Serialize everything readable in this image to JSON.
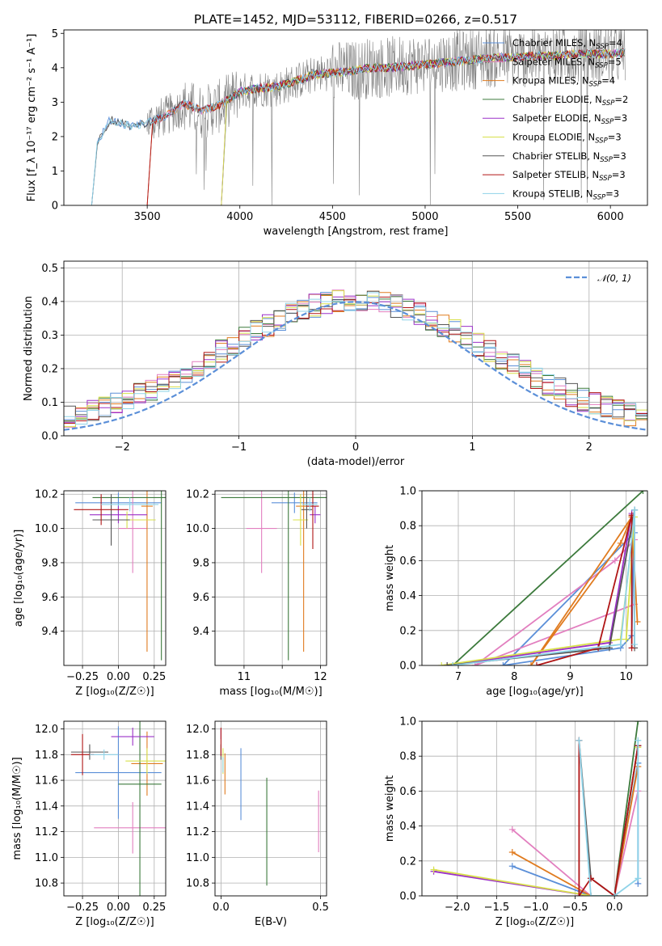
{
  "chart_data": [
    {
      "id": "spectrum",
      "type": "line",
      "title": "PLATE=1452, MJD=53112, FIBERID=0266, z=0.517",
      "xlabel": "wavelength [Angstrom, rest frame]",
      "ylabel": "Flux [f_λ 10⁻¹⁷ erg cm⁻² s⁻¹ A⁻¹]",
      "xlim": [
        3050,
        6200
      ],
      "ylim": [
        0,
        5.1
      ],
      "xticks": [
        3500,
        4000,
        4500,
        5000,
        5500,
        6000
      ],
      "yticks": [
        0,
        1,
        2,
        3,
        4,
        5
      ],
      "grid": false,
      "legend_position": "top-right",
      "legend": [
        {
          "main": "Chabrier MILES, N",
          "sub": "SSP",
          "tail": "=4",
          "color": "#5b8fd8"
        },
        {
          "main": "Salpeter MILES, N",
          "sub": "SSP",
          "tail": "=5",
          "color": "#e27fbf"
        },
        {
          "main": "Kroupa MILES, N",
          "sub": "SSP",
          "tail": "=4",
          "color": "#e07b1f"
        },
        {
          "main": "Chabrier ELODIE, N",
          "sub": "SSP",
          "tail": "=2",
          "color": "#3c7a3c"
        },
        {
          "main": "Salpeter ELODIE, N",
          "sub": "SSP",
          "tail": "=3",
          "color": "#9b30c8"
        },
        {
          "main": "Kroupa ELODIE, N",
          "sub": "SSP",
          "tail": "=3",
          "color": "#d8e04a"
        },
        {
          "main": "Chabrier STELIB, N",
          "sub": "SSP",
          "tail": "=3",
          "color": "#555555"
        },
        {
          "main": "Salpeter STELIB, N",
          "sub": "SSP",
          "tail": "=3",
          "color": "#b01515"
        },
        {
          "main": "Kroupa STELIB, N",
          "sub": "SSP",
          "tail": "=3",
          "color": "#8fd3e8"
        }
      ],
      "series": [
        {
          "kind": "data",
          "color": "#808080",
          "x": [
            3200,
            3230,
            3300,
            3400,
            3500,
            3600,
            3700,
            3800,
            3900,
            4000,
            4100,
            4200,
            4300,
            4400,
            4500,
            4600,
            4700,
            4800,
            4900,
            5000,
            5100,
            5200,
            5300,
            5400,
            5500,
            5600,
            5700,
            5800,
            5900,
            6000,
            6100
          ],
          "y": [
            0.0,
            1.8,
            2.4,
            2.3,
            2.4,
            2.6,
            2.9,
            2.7,
            2.9,
            3.3,
            3.4,
            3.4,
            3.6,
            3.8,
            3.9,
            3.9,
            4.0,
            4.0,
            4.1,
            4.1,
            4.2,
            4.2,
            4.3,
            4.3,
            4.3,
            4.3,
            4.4,
            4.4,
            4.4,
            4.4,
            4.4
          ]
        },
        {
          "kind": "model",
          "x": [
            3200,
            3230,
            3300,
            3400,
            3500,
            3600,
            3700,
            3800,
            3900,
            4000,
            4100,
            4200,
            4300,
            4400,
            4500,
            4600,
            4700,
            4800,
            4900,
            5000,
            5100,
            5200,
            5300,
            5400,
            5500,
            5600,
            5700,
            5800,
            5900,
            6000,
            6100
          ],
          "y": [
            0.0,
            1.8,
            2.5,
            2.3,
            2.4,
            2.6,
            2.95,
            2.75,
            2.95,
            3.3,
            3.4,
            3.45,
            3.6,
            3.8,
            3.85,
            3.9,
            4.0,
            4.0,
            4.05,
            4.1,
            4.15,
            4.2,
            4.25,
            4.3,
            4.3,
            4.35,
            4.35,
            4.4,
            4.4,
            4.4,
            4.45
          ]
        }
      ]
    },
    {
      "id": "residuals",
      "type": "line",
      "xlabel": "(data-model)/error",
      "ylabel": "Normed distribution",
      "xlim": [
        -2.5,
        2.5
      ],
      "ylim": [
        0,
        0.52
      ],
      "xticks": [
        -2,
        -1,
        0,
        1,
        2
      ],
      "yticks": [
        0.0,
        0.1,
        0.2,
        0.3,
        0.4,
        0.5
      ],
      "grid": true,
      "legend_position": "top-right",
      "legend": [
        {
          "label": "𝒩(0, 1)",
          "color": "#5b8fd8",
          "dashed": true
        }
      ],
      "gaussian": {
        "mean": 0,
        "sigma": 1
      }
    },
    {
      "id": "age-vs-Z",
      "type": "scatter",
      "xlabel": "Z [log₁₀(Z/Z☉)]",
      "ylabel": "age  [log₁₀(age/yr)]",
      "xlim": [
        -0.38,
        0.33
      ],
      "ylim": [
        9.2,
        10.22
      ],
      "xticks": [
        -0.25,
        0.0,
        0.25
      ],
      "xtick_labels": [
        "−0.25",
        "0.00",
        "0.25"
      ],
      "yticks": [
        9.4,
        9.6,
        9.8,
        10.0,
        10.2
      ],
      "grid": true,
      "points": [
        {
          "x": 0.0,
          "y": 10.15,
          "xerr": 0.3,
          "yerr": 0.06,
          "color": "#5b8fd8"
        },
        {
          "x": 0.1,
          "y": 10.0,
          "xerr": 0.1,
          "yerr": 0.26,
          "color": "#e27fbf"
        },
        {
          "x": 0.2,
          "y": 10.13,
          "xerr": 0.04,
          "yerr": 0.85,
          "color": "#e07b1f"
        },
        {
          "x": 0.3,
          "y": 10.18,
          "xerr": 0.48,
          "yerr": 0.95,
          "color": "#3c7a3c"
        },
        {
          "x": 0.0,
          "y": 10.08,
          "xerr": 0.2,
          "yerr": 0.05,
          "color": "#9b30c8"
        },
        {
          "x": 0.06,
          "y": 10.05,
          "xerr": 0.2,
          "yerr": 0.05,
          "color": "#d8e04a"
        },
        {
          "x": -0.05,
          "y": 10.05,
          "xerr": 0.13,
          "yerr": 0.15,
          "color": "#555555"
        },
        {
          "x": -0.12,
          "y": 10.11,
          "xerr": 0.19,
          "yerr": 0.09,
          "color": "#b01515"
        },
        {
          "x": 0.08,
          "y": 10.14,
          "xerr": 0.2,
          "yerr": 0.04,
          "color": "#8fd3e8"
        }
      ]
    },
    {
      "id": "age-vs-mass",
      "type": "scatter",
      "xlabel": "mass [log₁₀(M/M☉)]",
      "ylabel": "",
      "xlim": [
        10.62,
        12.08
      ],
      "ylim": [
        9.2,
        10.22
      ],
      "xticks": [
        11,
        11.5,
        12
      ],
      "xtick_labels": [
        "11",
        "",
        "12"
      ],
      "yticks": [
        9.4,
        9.6,
        9.8,
        10.0,
        10.2
      ],
      "grid": true,
      "points": [
        {
          "x": 11.66,
          "y": 10.15,
          "xerr": 0.3,
          "yerr": 0.06,
          "color": "#5b8fd8"
        },
        {
          "x": 11.23,
          "y": 10.0,
          "xerr": 0.2,
          "yerr": 0.26,
          "color": "#e27fbf"
        },
        {
          "x": 11.78,
          "y": 10.13,
          "xerr": 0.1,
          "yerr": 0.85,
          "color": "#e07b1f"
        },
        {
          "x": 11.58,
          "y": 10.18,
          "xerr": 0.88,
          "yerr": 0.95,
          "color": "#3c7a3c"
        },
        {
          "x": 11.93,
          "y": 10.08,
          "xerr": 0.07,
          "yerr": 0.05,
          "color": "#9b30c8"
        },
        {
          "x": 11.74,
          "y": 10.05,
          "xerr": 0.1,
          "yerr": 0.15,
          "color": "#d8e04a"
        },
        {
          "x": 11.82,
          "y": 10.11,
          "xerr": 0.07,
          "yerr": 0.11,
          "color": "#555555"
        },
        {
          "x": 11.9,
          "y": 10.13,
          "xerr": 0.08,
          "yerr": 0.25,
          "color": "#b01515"
        },
        {
          "x": 11.86,
          "y": 10.14,
          "xerr": 0.1,
          "yerr": 0.04,
          "color": "#8fd3e8"
        }
      ]
    },
    {
      "id": "weight-vs-age",
      "type": "line",
      "xlabel": "age  [log₁₀(age/yr)]",
      "ylabel": "mass weight",
      "xlim": [
        6.35,
        10.38
      ],
      "ylim": [
        0,
        1.0
      ],
      "xticks": [
        7,
        8,
        9,
        10
      ],
      "yticks": [
        0.0,
        0.2,
        0.4,
        0.6,
        0.8,
        1.0
      ],
      "grid": true,
      "series": [
        {
          "color": "#5b8fd8",
          "x": [
            10.15,
            7.8,
            9.9,
            10.1,
            10.15,
            10.1
          ],
          "y": [
            0.76,
            0.0,
            0.1,
            0.17,
            0.89,
            0.17
          ]
        },
        {
          "color": "#e27fbf",
          "x": [
            7.3,
            9.8,
            10.15,
            10.15,
            7.3
          ],
          "y": [
            0.0,
            0.6,
            0.72,
            0.35,
            0.0
          ]
        },
        {
          "color": "#e07b1f",
          "x": [
            8.3,
            9.9,
            10.1,
            10.2,
            10.1,
            8.3
          ],
          "y": [
            0.0,
            0.7,
            0.85,
            0.25,
            0.85,
            0.0
          ]
        },
        {
          "color": "#3c7a3c",
          "x": [
            6.9,
            10.3,
            6.9
          ],
          "y": [
            0.0,
            1.0,
            0.0
          ]
        },
        {
          "color": "#9b30c8",
          "x": [
            6.8,
            9.7,
            10.1
          ],
          "y": [
            0.0,
            0.13,
            0.87
          ]
        },
        {
          "color": "#d8e04a",
          "x": [
            6.7,
            9.9,
            10.15,
            10.0
          ],
          "y": [
            0.0,
            0.15,
            0.85,
            0.15
          ]
        },
        {
          "color": "#555555",
          "x": [
            6.8,
            9.7,
            10.15,
            10.15
          ],
          "y": [
            0.0,
            0.1,
            0.89,
            0.1
          ]
        },
        {
          "color": "#b01515",
          "x": [
            8.4,
            9.5,
            10.1,
            10.1
          ],
          "y": [
            0.0,
            0.1,
            0.86,
            0.1
          ]
        },
        {
          "color": "#8fd3e8",
          "x": [
            6.9,
            9.9,
            10.15,
            10.15
          ],
          "y": [
            0.0,
            0.12,
            0.89,
            0.12
          ]
        }
      ]
    },
    {
      "id": "mass-vs-Z",
      "type": "scatter",
      "xlabel": "Z [log₁₀(Z/Z☉)]",
      "ylabel": "mass [log₁₀(M/M☉)]",
      "xlim": [
        -0.38,
        0.33
      ],
      "ylim": [
        10.7,
        12.06
      ],
      "xticks": [
        -0.25,
        0.0,
        0.25
      ],
      "xtick_labels": [
        "−0.25",
        "0.00",
        "0.25"
      ],
      "yticks": [
        10.8,
        11.0,
        11.2,
        11.4,
        11.6,
        11.8,
        12.0
      ],
      "grid": true,
      "points": [
        {
          "x": 0.0,
          "y": 11.66,
          "xerr": 0.3,
          "yerr": 0.36,
          "color": "#5b8fd8"
        },
        {
          "x": 0.1,
          "y": 11.23,
          "xerr": 0.27,
          "yerr": 0.2,
          "color": "#e27fbf"
        },
        {
          "x": 0.2,
          "y": 11.73,
          "xerr": 0.11,
          "yerr": 0.25,
          "color": "#e07b1f"
        },
        {
          "x": 0.15,
          "y": 11.57,
          "xerr": 0.15,
          "yerr": 0.88,
          "color": "#3c7a3c"
        },
        {
          "x": 0.1,
          "y": 11.94,
          "xerr": 0.15,
          "yerr": 0.07,
          "color": "#9b30c8"
        },
        {
          "x": 0.2,
          "y": 11.75,
          "xerr": 0.15,
          "yerr": 0.1,
          "color": "#d8e04a"
        },
        {
          "x": -0.2,
          "y": 11.82,
          "xerr": 0.13,
          "yerr": 0.06,
          "color": "#555555"
        },
        {
          "x": -0.25,
          "y": 11.8,
          "xerr": 0.08,
          "yerr": 0.16,
          "color": "#b01515"
        },
        {
          "x": -0.1,
          "y": 11.8,
          "xerr": 0.1,
          "yerr": 0.04,
          "color": "#8fd3e8"
        }
      ]
    },
    {
      "id": "mass-vs-EBV",
      "type": "scatter",
      "xlabel": "E(B-V)",
      "ylabel": "",
      "xlim": [
        -0.03,
        0.53
      ],
      "ylim": [
        10.7,
        12.06
      ],
      "xticks": [
        0.0,
        0.5
      ],
      "xtick_labels": [
        "0.0",
        "0.5"
      ],
      "yticks": [
        10.8,
        11.0,
        11.2,
        11.4,
        11.6,
        11.8,
        12.0
      ],
      "grid": true,
      "points": [
        {
          "x": 0.1,
          "y": 11.57,
          "xerr": 0,
          "yerr": 0.28,
          "color": "#5b8fd8"
        },
        {
          "x": 0.49,
          "y": 11.28,
          "xerr": 0,
          "yerr": 0.24,
          "color": "#e27fbf"
        },
        {
          "x": 0.02,
          "y": 11.65,
          "xerr": 0,
          "yerr": 0.16,
          "color": "#e07b1f"
        },
        {
          "x": 0.23,
          "y": 11.2,
          "xerr": 0,
          "yerr": 0.42,
          "color": "#3c7a3c"
        },
        {
          "x": 0.0,
          "y": 11.96,
          "xerr": 0,
          "yerr": 0.04,
          "color": "#9b30c8"
        },
        {
          "x": 0.01,
          "y": 11.75,
          "xerr": 0,
          "yerr": 0.1,
          "color": "#d8e04a"
        },
        {
          "x": 0.0,
          "y": 11.82,
          "xerr": 0,
          "yerr": 0.06,
          "color": "#555555"
        },
        {
          "x": 0.0,
          "y": 11.9,
          "xerr": 0,
          "yerr": 0.11,
          "color": "#b01515"
        },
        {
          "x": 0.01,
          "y": 11.72,
          "xerr": 0,
          "yerr": 0.06,
          "color": "#8fd3e8"
        }
      ]
    },
    {
      "id": "weight-vs-Z",
      "type": "line",
      "xlabel": "Z [log₁₀(Z/Z☉)]",
      "ylabel": "mass weight",
      "xlim": [
        -2.45,
        0.42
      ],
      "ylim": [
        0,
        1.0
      ],
      "xticks": [
        -2.0,
        -1.5,
        -1.0,
        -0.5,
        0.0
      ],
      "xtick_labels": [
        "−2.0",
        "−1.5",
        "−1.0",
        "−0.5",
        "0.0"
      ],
      "yticks": [
        0.0,
        0.2,
        0.4,
        0.6,
        0.8,
        1.0
      ],
      "grid": true,
      "series": [
        {
          "color": "#5b8fd8",
          "x": [
            -1.3,
            -0.3,
            0.0,
            0.3,
            0.3,
            0.3
          ],
          "y": [
            0.17,
            0.0,
            0.0,
            0.76,
            0.07,
            0.76
          ]
        },
        {
          "color": "#e27fbf",
          "x": [
            -1.3,
            -0.3,
            0.0,
            0.3
          ],
          "y": [
            0.38,
            0.0,
            0.0,
            0.6
          ]
        },
        {
          "color": "#e07b1f",
          "x": [
            -1.3,
            -0.3,
            0.0,
            0.3
          ],
          "y": [
            0.25,
            0.0,
            0.0,
            0.74
          ]
        },
        {
          "color": "#3c7a3c",
          "x": [
            -0.3,
            0.0,
            0.3
          ],
          "y": [
            0.0,
            0.0,
            1.0
          ]
        },
        {
          "color": "#9b30c8",
          "x": [
            -2.3,
            -0.3,
            0.0,
            0.3
          ],
          "y": [
            0.14,
            0.0,
            0.0,
            0.86
          ]
        },
        {
          "color": "#d8e04a",
          "x": [
            -2.3,
            -0.3,
            0.0,
            0.3
          ],
          "y": [
            0.15,
            0.0,
            0.0,
            0.85
          ]
        },
        {
          "color": "#555555",
          "x": [
            -0.45,
            -0.3,
            0.0,
            0.3
          ],
          "y": [
            0.89,
            0.1,
            0.0,
            0.86
          ]
        },
        {
          "color": "#b01515",
          "x": [
            -0.45,
            -0.45,
            -0.3,
            0.0,
            0.3
          ],
          "y": [
            0.89,
            0.0,
            0.1,
            0.0,
            0.86
          ]
        },
        {
          "color": "#8fd3e8",
          "x": [
            -0.45,
            -0.3,
            0.0,
            0.3,
            0.3
          ],
          "y": [
            0.89,
            0.0,
            0.0,
            0.1,
            0.89
          ]
        }
      ]
    }
  ]
}
